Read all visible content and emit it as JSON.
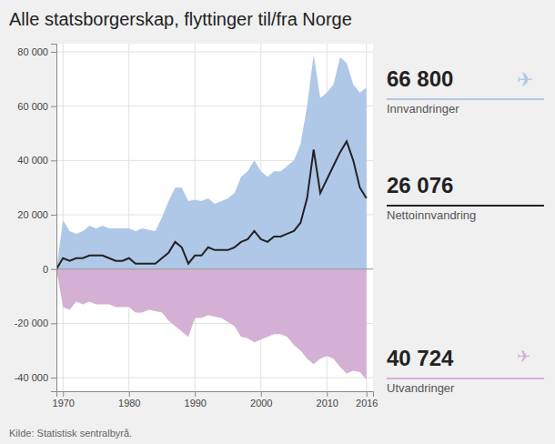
{
  "chart_data": {
    "type": "area",
    "title": "Alle statsborgerskap, flyttinger til/fra Norge",
    "source": "Kilde: Statistisk sentralbyrå.",
    "x": [
      1969,
      1970,
      1971,
      1972,
      1973,
      1974,
      1975,
      1976,
      1977,
      1978,
      1979,
      1980,
      1981,
      1982,
      1983,
      1984,
      1985,
      1986,
      1987,
      1988,
      1989,
      1990,
      1991,
      1992,
      1993,
      1994,
      1995,
      1996,
      1997,
      1998,
      1999,
      2000,
      2001,
      2002,
      2003,
      2004,
      2005,
      2006,
      2007,
      2008,
      2009,
      2010,
      2011,
      2012,
      2013,
      2014,
      2015,
      2016
    ],
    "series": [
      {
        "name": "Innvandringer",
        "type": "area",
        "color": "#b0c8e8",
        "values": [
          0,
          18000,
          14000,
          13000,
          14000,
          16000,
          15000,
          16000,
          15000,
          15000,
          15000,
          15000,
          14000,
          15000,
          14500,
          14000,
          19000,
          25000,
          30000,
          30000,
          25000,
          25500,
          25000,
          26000,
          24000,
          25000,
          26000,
          28000,
          34000,
          36000,
          40000,
          36000,
          34000,
          36000,
          36000,
          38000,
          40000,
          46000,
          60000,
          79000,
          63000,
          65000,
          68000,
          78000,
          76000,
          68000,
          65000,
          66800
        ]
      },
      {
        "name": "Utvandringer",
        "type": "area",
        "color": "#d4b0d4",
        "values": [
          0,
          -14000,
          -15000,
          -12000,
          -13000,
          -12000,
          -13000,
          -13000,
          -13000,
          -14000,
          -14000,
          -14000,
          -16000,
          -16000,
          -15000,
          -15500,
          -16000,
          -19000,
          -21000,
          -23000,
          -25000,
          -18000,
          -18000,
          -17000,
          -17500,
          -18000,
          -19500,
          -21000,
          -25000,
          -25500,
          -27000,
          -26000,
          -25000,
          -24000,
          -24000,
          -25000,
          -28000,
          -30000,
          -33000,
          -35000,
          -33000,
          -32000,
          -33000,
          -36000,
          -38500,
          -37500,
          -38000,
          -40724
        ]
      },
      {
        "name": "Nettoinnvandring",
        "type": "line",
        "color": "#222222",
        "values": [
          0,
          4000,
          3000,
          4000,
          4000,
          5000,
          5000,
          5000,
          4000,
          3000,
          3000,
          4000,
          2000,
          2000,
          2000,
          2000,
          4000,
          6000,
          10000,
          8000,
          2000,
          5000,
          5000,
          8000,
          7000,
          7000,
          7000,
          8000,
          10000,
          11000,
          14000,
          11000,
          10000,
          12000,
          12000,
          13000,
          14000,
          17000,
          26000,
          44000,
          28000,
          33000,
          38000,
          43000,
          47000,
          40000,
          30000,
          26076
        ]
      }
    ],
    "xlim": [
      1969,
      2017
    ],
    "ylim": [
      -45000,
      83000
    ],
    "xticks": [
      1970,
      1980,
      1990,
      2000,
      2010,
      2016
    ],
    "yticks": [
      {
        "value": -40000,
        "label": "-40 000"
      },
      {
        "value": -20000,
        "label": "-20 000"
      },
      0,
      {
        "value": 20000,
        "label": "20 000"
      },
      {
        "value": 40000,
        "label": "40 000"
      },
      {
        "value": 60000,
        "label": "60 000"
      },
      {
        "value": 80000,
        "label": "80 000"
      }
    ],
    "grid": true,
    "annotations": [
      {
        "text": "66 800"
      },
      {
        "text": "✈"
      },
      {
        "text": "26 076"
      },
      {
        "text": "40 724"
      },
      {
        "text": "✈"
      }
    ]
  }
}
